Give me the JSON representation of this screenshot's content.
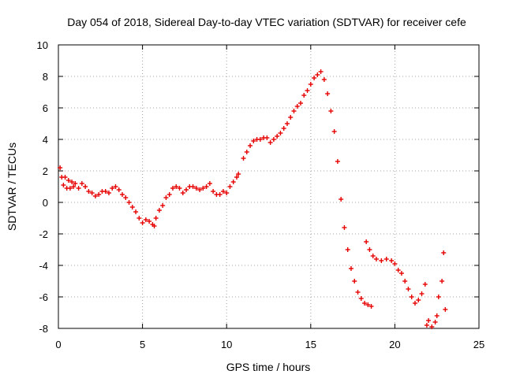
{
  "chart_data": {
    "type": "scatter",
    "title": "Day 054 of 2018, Sidereal Day-to-day VTEC variation (SDTVAR) for receiver cefe",
    "xlabel": "GPS time / hours",
    "ylabel": "SDTVAR / TECUs",
    "xlim": [
      0,
      25
    ],
    "ylim": [
      -8,
      10
    ],
    "xticks": [
      0,
      5,
      10,
      15,
      20,
      25
    ],
    "yticks": [
      -8,
      -6,
      -4,
      -2,
      0,
      2,
      4,
      6,
      8,
      10
    ],
    "grid": true,
    "marker": "plus",
    "color": "#e60000",
    "series": [
      {
        "points": [
          [
            0.1,
            2.2
          ],
          [
            0.2,
            1.6
          ],
          [
            0.3,
            1.1
          ],
          [
            0.4,
            1.6
          ],
          [
            0.5,
            0.9
          ],
          [
            0.6,
            1.4
          ],
          [
            0.7,
            0.9
          ],
          [
            0.8,
            1.3
          ],
          [
            0.9,
            1.0
          ],
          [
            1.0,
            1.2
          ],
          [
            1.2,
            0.9
          ],
          [
            1.4,
            1.2
          ],
          [
            1.6,
            1.0
          ],
          [
            1.8,
            0.7
          ],
          [
            2.0,
            0.6
          ],
          [
            2.2,
            0.4
          ],
          [
            2.4,
            0.5
          ],
          [
            2.6,
            0.7
          ],
          [
            2.8,
            0.7
          ],
          [
            3.0,
            0.6
          ],
          [
            3.2,
            0.9
          ],
          [
            3.4,
            1.0
          ],
          [
            3.6,
            0.8
          ],
          [
            3.8,
            0.5
          ],
          [
            4.0,
            0.3
          ],
          [
            4.2,
            0.0
          ],
          [
            4.4,
            -0.3
          ],
          [
            4.6,
            -0.6
          ],
          [
            4.8,
            -1.0
          ],
          [
            5.0,
            -1.3
          ],
          [
            5.2,
            -1.1
          ],
          [
            5.4,
            -1.2
          ],
          [
            5.6,
            -1.4
          ],
          [
            5.7,
            -1.5
          ],
          [
            5.8,
            -1.0
          ],
          [
            6.0,
            -0.5
          ],
          [
            6.2,
            -0.2
          ],
          [
            6.4,
            0.3
          ],
          [
            6.6,
            0.5
          ],
          [
            6.8,
            0.9
          ],
          [
            7.0,
            1.0
          ],
          [
            7.2,
            0.9
          ],
          [
            7.4,
            0.6
          ],
          [
            7.6,
            0.8
          ],
          [
            7.8,
            1.0
          ],
          [
            8.0,
            1.0
          ],
          [
            8.2,
            0.9
          ],
          [
            8.4,
            0.8
          ],
          [
            8.6,
            0.9
          ],
          [
            8.8,
            1.0
          ],
          [
            9.0,
            1.2
          ],
          [
            9.2,
            0.7
          ],
          [
            9.4,
            0.5
          ],
          [
            9.6,
            0.5
          ],
          [
            9.8,
            0.7
          ],
          [
            10.0,
            0.6
          ],
          [
            10.2,
            1.0
          ],
          [
            10.4,
            1.3
          ],
          [
            10.6,
            1.6
          ],
          [
            10.7,
            1.8
          ],
          [
            11.0,
            2.8
          ],
          [
            11.2,
            3.2
          ],
          [
            11.4,
            3.6
          ],
          [
            11.6,
            3.9
          ],
          [
            11.8,
            4.0
          ],
          [
            12.0,
            4.0
          ],
          [
            12.2,
            4.1
          ],
          [
            12.4,
            4.1
          ],
          [
            12.6,
            3.8
          ],
          [
            12.8,
            4.0
          ],
          [
            13.0,
            4.2
          ],
          [
            13.2,
            4.4
          ],
          [
            13.4,
            4.7
          ],
          [
            13.6,
            5.0
          ],
          [
            13.8,
            5.4
          ],
          [
            14.0,
            5.8
          ],
          [
            14.2,
            6.1
          ],
          [
            14.4,
            6.3
          ],
          [
            14.6,
            6.8
          ],
          [
            14.8,
            7.1
          ],
          [
            15.0,
            7.5
          ],
          [
            15.2,
            7.9
          ],
          [
            15.4,
            8.1
          ],
          [
            15.6,
            8.3
          ],
          [
            15.8,
            7.8
          ],
          [
            16.0,
            6.9
          ],
          [
            16.2,
            5.8
          ],
          [
            16.4,
            4.5
          ],
          [
            16.6,
            2.6
          ],
          [
            16.8,
            0.2
          ],
          [
            17.0,
            -1.6
          ],
          [
            17.2,
            -3.0
          ],
          [
            17.4,
            -4.2
          ],
          [
            17.6,
            -5.0
          ],
          [
            17.8,
            -5.7
          ],
          [
            18.0,
            -6.1
          ],
          [
            18.2,
            -6.4
          ],
          [
            18.4,
            -6.5
          ],
          [
            18.6,
            -6.6
          ],
          [
            18.3,
            -2.5
          ],
          [
            18.5,
            -3.0
          ],
          [
            18.7,
            -3.4
          ],
          [
            18.9,
            -3.6
          ],
          [
            19.2,
            -3.7
          ],
          [
            19.5,
            -3.6
          ],
          [
            19.8,
            -3.7
          ],
          [
            20.0,
            -3.9
          ],
          [
            20.2,
            -4.3
          ],
          [
            20.4,
            -4.5
          ],
          [
            20.6,
            -5.0
          ],
          [
            20.8,
            -5.5
          ],
          [
            21.0,
            -6.0
          ],
          [
            21.2,
            -6.4
          ],
          [
            21.4,
            -6.2
          ],
          [
            21.6,
            -5.8
          ],
          [
            21.8,
            -5.2
          ],
          [
            21.9,
            -7.8
          ],
          [
            22.0,
            -7.5
          ],
          [
            22.2,
            -7.9
          ],
          [
            22.4,
            -7.6
          ],
          [
            22.5,
            -7.2
          ],
          [
            22.6,
            -6.0
          ],
          [
            22.8,
            -5.0
          ],
          [
            22.9,
            -3.2
          ],
          [
            23.0,
            -6.8
          ]
        ]
      }
    ]
  }
}
